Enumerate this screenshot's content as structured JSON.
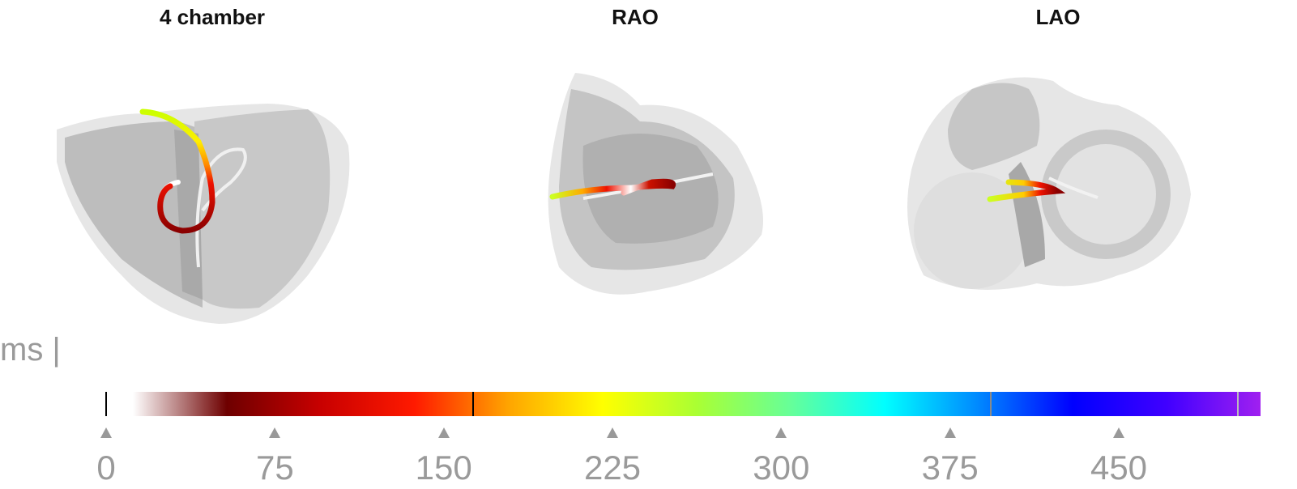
{
  "views": [
    {
      "title": "4 chamber"
    },
    {
      "title": "RAO"
    },
    {
      "title": "LAO"
    }
  ],
  "colorbar": {
    "unit": "ms |",
    "min": 0,
    "max": 525,
    "ticks": [
      {
        "label": "0",
        "value": 0
      },
      {
        "label": "75",
        "value": 75
      },
      {
        "label": "150",
        "value": 150
      },
      {
        "label": "225",
        "value": 225
      },
      {
        "label": "300",
        "value": 300
      },
      {
        "label": "375",
        "value": 375
      },
      {
        "label": "450",
        "value": 450
      }
    ],
    "markers": [
      {
        "value": 0,
        "color": "#000000"
      },
      {
        "value": 163,
        "color": "#000000"
      },
      {
        "value": 393,
        "color": "#8a8a8a"
      },
      {
        "value": 503,
        "color": "#bbbbbb"
      }
    ],
    "gradient": [
      "#ffffff",
      "#6e0000",
      "#c80000",
      "#ff1a00",
      "#ffa500",
      "#ffff00",
      "#aaff33",
      "#66ff99",
      "#00ffff",
      "#0088ff",
      "#0000ff",
      "#4000ff",
      "#a020f0"
    ]
  }
}
